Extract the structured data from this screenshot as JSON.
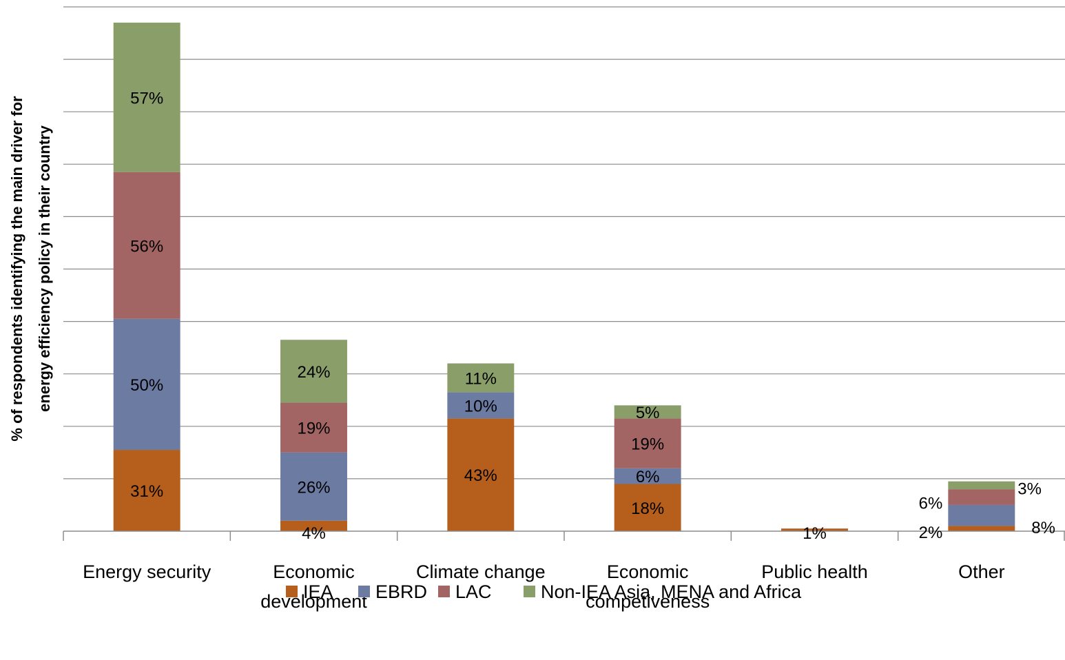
{
  "chart_data": {
    "type": "bar",
    "stacked": true,
    "categories": [
      [
        "Energy security"
      ],
      [
        "Economic",
        "development"
      ],
      [
        "Climate change"
      ],
      [
        "Economic",
        "competiveness"
      ],
      [
        "Public health"
      ],
      [
        "Other"
      ]
    ],
    "series": [
      {
        "name": "IEA",
        "color": "#B65E1C",
        "values": [
          31,
          4,
          43,
          18,
          1,
          2
        ],
        "labels": [
          "31%",
          "4%",
          "43%",
          "18%",
          "1%",
          "2%"
        ]
      },
      {
        "name": "EBRD",
        "color": "#6B7BA2",
        "values": [
          50,
          26,
          10,
          6,
          0,
          8
        ],
        "labels": [
          "50%",
          "26%",
          "10%",
          "6%",
          "",
          "8%"
        ]
      },
      {
        "name": "LAC",
        "color": "#A26564",
        "values": [
          56,
          19,
          0,
          19,
          0,
          6
        ],
        "labels": [
          "56%",
          "19%",
          "",
          "19%",
          "",
          "6%"
        ]
      },
      {
        "name": "Non-IEA Asia, MENA and Africa",
        "color": "#8A9E6A",
        "values": [
          57,
          24,
          11,
          5,
          0,
          3
        ],
        "labels": [
          "57%",
          "24%",
          "11%",
          "5%",
          "",
          "3%"
        ]
      }
    ],
    "ylabel": [
      "% of respondents identifying the main driver for",
      "energy efficiency policy in their country"
    ],
    "ylim": [
      0,
      200
    ],
    "grid": true,
    "legend": "bottom"
  }
}
